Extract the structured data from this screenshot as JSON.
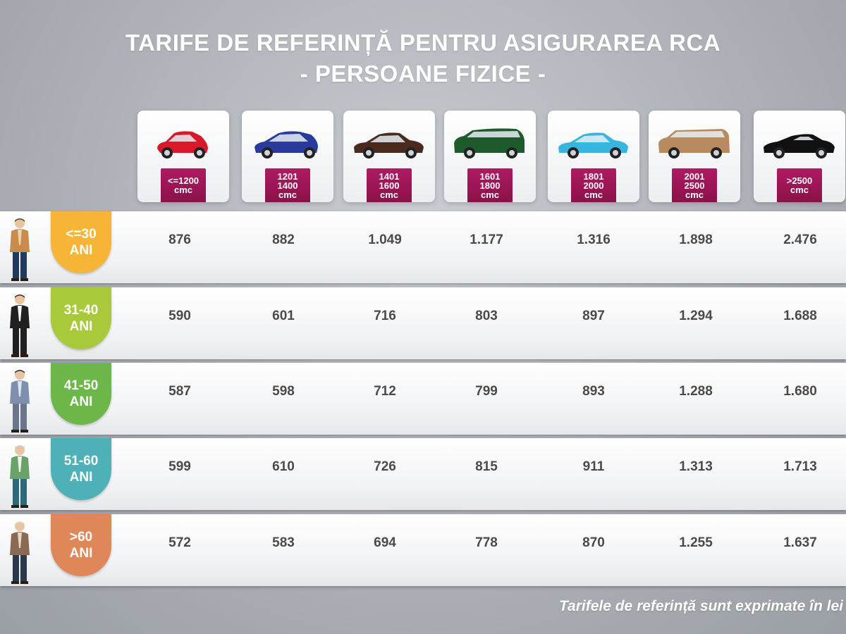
{
  "title": "TARIFE DE REFERINȚĂ PENTRU ASIGURAREA RCA",
  "subtitle": "- PERSOANE FIZICE -",
  "footnote": "Tarifele de referință sunt exprimate în lei",
  "colors": {
    "badge_magenta": "#9c1457",
    "age_colors": [
      "#f7b538",
      "#a8c93a",
      "#6cb64a",
      "#4fb1b8",
      "#e0875a"
    ],
    "car_colors": [
      "#d8192a",
      "#2a3a9c",
      "#4a2a1c",
      "#1f5a2c",
      "#38b4e0",
      "#b78a60",
      "#111111"
    ]
  },
  "chart_data": {
    "type": "table",
    "columns": [
      "<=1200\ncmc",
      "1201\n1400\ncmc",
      "1401\n1600\ncmc",
      "1601\n1800\ncmc",
      "1801\n2000\ncmc",
      "2001\n2500\ncmc",
      ">2500\ncmc"
    ],
    "car_icons": [
      "hatchback-icon",
      "compact-hatchback-icon",
      "sedan-icon",
      "minivan-icon",
      "sedan-icon",
      "suv-icon",
      "convertible-icon"
    ],
    "rows": [
      {
        "label": "<=30\nANI",
        "values": [
          "876",
          "882",
          "1.049",
          "1.177",
          "1.316",
          "1.898",
          "2.476"
        ]
      },
      {
        "label": "31-40\nANI",
        "values": [
          "590",
          "601",
          "716",
          "803",
          "897",
          "1.294",
          "1.688"
        ]
      },
      {
        "label": "41-50\nANI",
        "values": [
          "587",
          "598",
          "712",
          "799",
          "893",
          "1.288",
          "1.680"
        ]
      },
      {
        "label": "51-60\nANI",
        "values": [
          "599",
          "610",
          "726",
          "815",
          "911",
          "1.313",
          "1.713"
        ]
      },
      {
        "label": ">60\nANI",
        "values": [
          "572",
          "583",
          "694",
          "778",
          "870",
          "1.255",
          "1.637"
        ]
      }
    ]
  }
}
